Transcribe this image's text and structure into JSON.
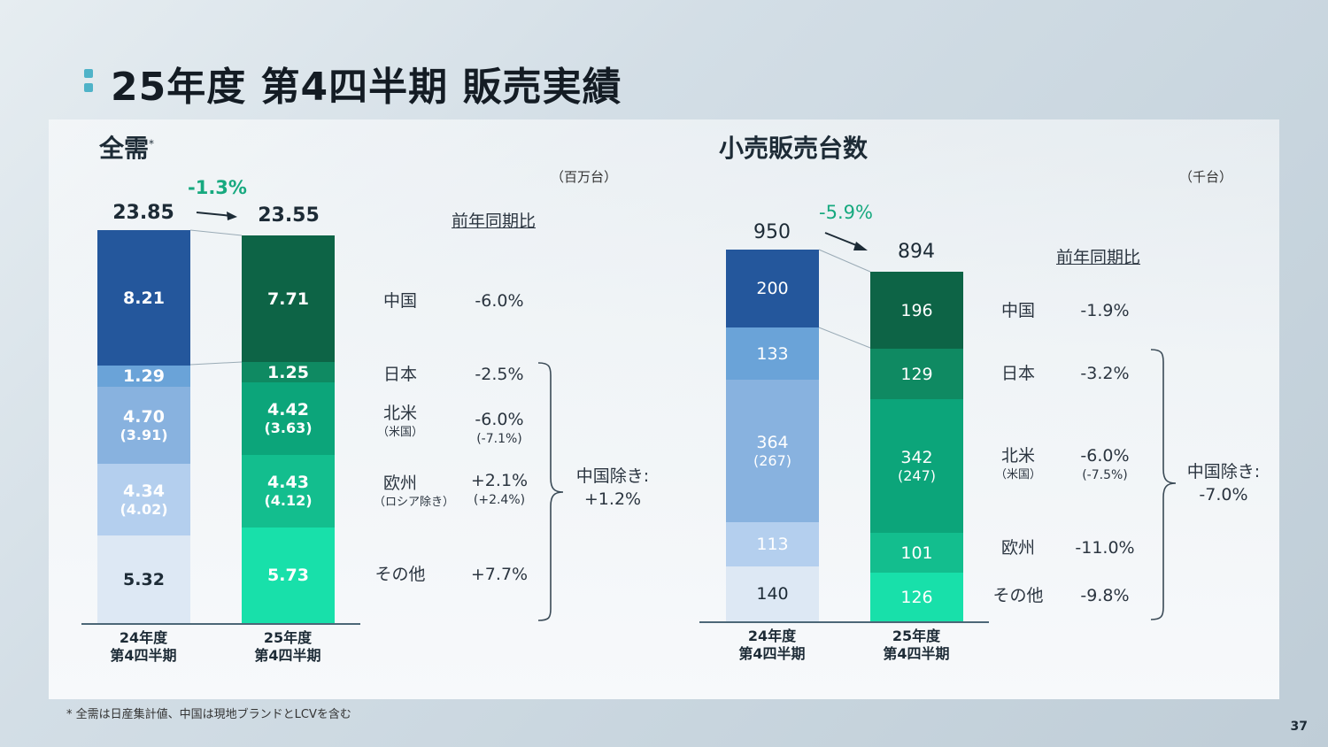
{
  "title": "25年度 第4四半期 販売実績",
  "footnote": "* 全需は日産集計値、中国は現地ブランドとLCVを含む",
  "page_number": "37",
  "colors": {
    "accent": "#4fb3c8",
    "change_green": "#17a97f",
    "fy24_segments": [
      "#24579c",
      "#6aa3d8",
      "#88b2df",
      "#b4cfee",
      "#dde8f4"
    ],
    "fy25_segments": [
      "#0d6446",
      "#0f8a62",
      "#0ca57a",
      "#13be8e",
      "#18e0aa"
    ]
  },
  "tiv": {
    "heading": "全需",
    "heading_mark": "*",
    "unit": "（百万台）",
    "change": "-1.3%",
    "yoy_header": "前年同期比",
    "exchina_label": "中国除き:",
    "exchina_value": "+1.2%",
    "regions": [
      {
        "name": "中国",
        "sub": "",
        "yoy": "-6.0%",
        "yoy_sub": ""
      },
      {
        "name": "日本",
        "sub": "",
        "yoy": "-2.5%",
        "yoy_sub": ""
      },
      {
        "name": "北米",
        "sub": "（米国）",
        "yoy": "-6.0%",
        "yoy_sub": "(-7.1%)"
      },
      {
        "name": "欧州",
        "sub": "（ロシア除き）",
        "yoy": "+2.1%",
        "yoy_sub": "(+2.4%)"
      },
      {
        "name": "その他",
        "sub": "",
        "yoy": "+7.7%",
        "yoy_sub": ""
      }
    ],
    "bars": [
      {
        "label": [
          "24年度",
          "第4四半期"
        ],
        "total": "23.85",
        "segments": [
          {
            "value": "8.21",
            "sub": ""
          },
          {
            "value": "1.29",
            "sub": ""
          },
          {
            "value": "4.70",
            "sub": "(3.91)"
          },
          {
            "value": "4.34",
            "sub": "(4.02)"
          },
          {
            "value": "5.32",
            "sub": ""
          }
        ]
      },
      {
        "label": [
          "25年度",
          "第4四半期"
        ],
        "total": "23.55",
        "segments": [
          {
            "value": "7.71",
            "sub": ""
          },
          {
            "value": "1.25",
            "sub": ""
          },
          {
            "value": "4.42",
            "sub": "(3.63)"
          },
          {
            "value": "4.43",
            "sub": "(4.12)"
          },
          {
            "value": "5.73",
            "sub": ""
          }
        ]
      }
    ]
  },
  "retail": {
    "heading": "小売販売台数",
    "unit": "（千台）",
    "change": "-5.9%",
    "yoy_header": "前年同期比",
    "exchina_label": "中国除き:",
    "exchina_value": "-7.0%",
    "regions": [
      {
        "name": "中国",
        "sub": "",
        "yoy": "-1.9%",
        "yoy_sub": ""
      },
      {
        "name": "日本",
        "sub": "",
        "yoy": "-3.2%",
        "yoy_sub": ""
      },
      {
        "name": "北米",
        "sub": "（米国）",
        "yoy": "-6.0%",
        "yoy_sub": "(-7.5%)"
      },
      {
        "name": "欧州",
        "sub": "",
        "yoy": "-11.0%",
        "yoy_sub": ""
      },
      {
        "name": "その他",
        "sub": "",
        "yoy": "-9.8%",
        "yoy_sub": ""
      }
    ],
    "bars": [
      {
        "label": [
          "24年度",
          "第4四半期"
        ],
        "total": "950",
        "segments": [
          {
            "value": "200",
            "sub": ""
          },
          {
            "value": "133",
            "sub": ""
          },
          {
            "value": "364",
            "sub": "(267)"
          },
          {
            "value": "113",
            "sub": ""
          },
          {
            "value": "140",
            "sub": ""
          }
        ]
      },
      {
        "label": [
          "25年度",
          "第4四半期"
        ],
        "total": "894",
        "segments": [
          {
            "value": "196",
            "sub": ""
          },
          {
            "value": "129",
            "sub": ""
          },
          {
            "value": "342",
            "sub": "(247)"
          },
          {
            "value": "101",
            "sub": ""
          },
          {
            "value": "126",
            "sub": ""
          }
        ]
      }
    ]
  },
  "chart_data": [
    {
      "type": "bar",
      "stacked": true,
      "title": "全需",
      "unit": "百万台",
      "categories": [
        "24年度 第4四半期",
        "25年度 第4四半期"
      ],
      "totals": [
        23.85,
        23.55
      ],
      "series": [
        {
          "name": "中国",
          "values": [
            8.21,
            7.71
          ]
        },
        {
          "name": "日本",
          "values": [
            1.29,
            1.25
          ]
        },
        {
          "name": "北米",
          "values": [
            4.7,
            4.42
          ]
        },
        {
          "name": "欧州",
          "values": [
            4.34,
            4.43
          ]
        },
        {
          "name": "その他",
          "values": [
            5.32,
            5.73
          ]
        }
      ],
      "subvalues": {
        "米国": [
          3.91,
          3.63
        ],
        "ロシア除き": [
          4.02,
          4.12
        ]
      },
      "yoy": {
        "中国": "-6.0%",
        "日本": "-2.5%",
        "北米": "-6.0%",
        "米国": "-7.1%",
        "欧州": "+2.1%",
        "ロシア除き": "+2.4%",
        "その他": "+7.7%",
        "中国除き": "+1.2%",
        "total": "-1.3%"
      }
    },
    {
      "type": "bar",
      "stacked": true,
      "title": "小売販売台数",
      "unit": "千台",
      "categories": [
        "24年度 第4四半期",
        "25年度 第4四半期"
      ],
      "totals": [
        950,
        894
      ],
      "series": [
        {
          "name": "中国",
          "values": [
            200,
            196
          ]
        },
        {
          "name": "日本",
          "values": [
            133,
            129
          ]
        },
        {
          "name": "北米",
          "values": [
            364,
            342
          ]
        },
        {
          "name": "欧州",
          "values": [
            113,
            101
          ]
        },
        {
          "name": "その他",
          "values": [
            140,
            126
          ]
        }
      ],
      "subvalues": {
        "米国": [
          267,
          247
        ]
      },
      "yoy": {
        "中国": "-1.9%",
        "日本": "-3.2%",
        "北米": "-6.0%",
        "米国": "-7.5%",
        "欧州": "-11.0%",
        "その他": "-9.8%",
        "中国除き": "-7.0%",
        "total": "-5.9%"
      }
    }
  ]
}
